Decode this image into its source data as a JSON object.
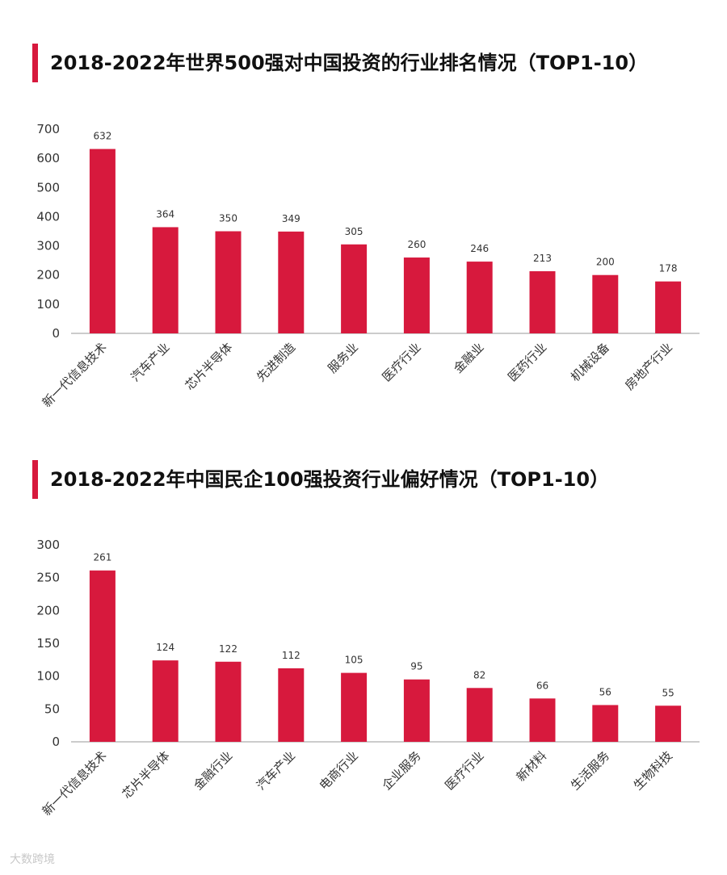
{
  "chart_data": [
    {
      "type": "bar",
      "title": "2018-2022年世界500强对中国投资的行业排名情况（TOP1-10）",
      "categories": [
        "新一代信息技术",
        "汽车产业",
        "芯片半导体",
        "先进制造",
        "服务业",
        "医疗行业",
        "金融业",
        "医药行业",
        "机械设备",
        "房地产行业"
      ],
      "values": [
        632,
        364,
        350,
        349,
        305,
        260,
        246,
        213,
        200,
        178
      ],
      "ylim": [
        0,
        700
      ],
      "yticks": [
        0,
        100,
        200,
        300,
        400,
        500,
        600,
        700
      ],
      "xlabel": "",
      "ylabel": "",
      "grid": false,
      "bar_color": "#d7193d"
    },
    {
      "type": "bar",
      "title": "2018-2022年中国民企100强投资行业偏好情况（TOP1-10）",
      "categories": [
        "新一代信息技术",
        "芯片半导体",
        "金融行业",
        "汽车产业",
        "电商行业",
        "企业服务",
        "医疗行业",
        "新材料",
        "生活服务",
        "生物科技"
      ],
      "values": [
        261,
        124,
        122,
        112,
        105,
        95,
        82,
        66,
        56,
        55
      ],
      "ylim": [
        0,
        300
      ],
      "yticks": [
        0,
        50,
        100,
        150,
        200,
        250,
        300
      ],
      "xlabel": "",
      "ylabel": "",
      "grid": false,
      "bar_color": "#d7193d"
    }
  ],
  "watermark": "大数跨境"
}
